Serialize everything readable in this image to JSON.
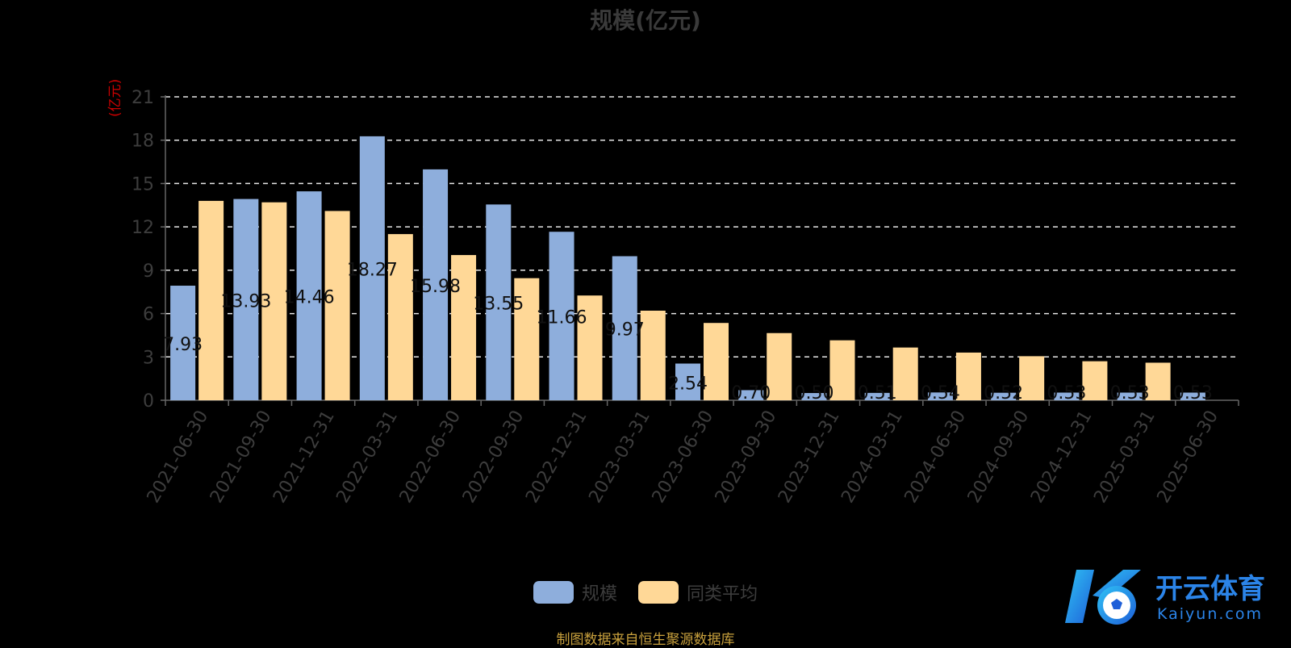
{
  "chart_data": {
    "type": "bar",
    "title": "规模(亿元)",
    "ylabel": "(亿元)",
    "xlabel": "",
    "ylim": [
      0,
      21
    ],
    "yticks": [
      0,
      3,
      6,
      9,
      12,
      15,
      18,
      21
    ],
    "grid": true,
    "legend_position": "bottom",
    "categories": [
      "2021-06-30",
      "2021-09-30",
      "2021-12-31",
      "2022-03-31",
      "2022-06-30",
      "2022-09-30",
      "2022-12-31",
      "2023-03-31",
      "2023-06-30",
      "2023-09-30",
      "2023-12-31",
      "2024-03-31",
      "2024-06-30",
      "2024-09-30",
      "2024-12-31",
      "2025-03-31",
      "2025-06-30"
    ],
    "series": [
      {
        "name": "规模",
        "color": "#8eaedc",
        "values": [
          7.93,
          13.93,
          14.46,
          18.27,
          15.98,
          13.55,
          11.66,
          9.97,
          2.54,
          0.7,
          0.5,
          0.51,
          0.54,
          0.52,
          0.53,
          0.53,
          0.53
        ],
        "labels": [
          "7.93",
          "13.93",
          "14.46",
          "18.27",
          "15.98",
          "13.55",
          "11.66",
          "9.97",
          "2.54",
          "0.70",
          "0.50",
          "0.51",
          "0.54",
          "0.52",
          "0.53",
          "0.53",
          "0.53"
        ]
      },
      {
        "name": "同类平均",
        "color": "#ffd897",
        "values": [
          13.8,
          13.7,
          13.1,
          11.5,
          10.05,
          8.45,
          7.25,
          6.2,
          5.35,
          4.65,
          4.15,
          3.65,
          3.3,
          3.05,
          2.7,
          2.6,
          null
        ]
      }
    ]
  },
  "legend": {
    "items": [
      {
        "label": "规模",
        "color": "#8eaedc"
      },
      {
        "label": "同类平均",
        "color": "#ffd897"
      }
    ]
  },
  "source_note": "制图数据来自恒生聚源数据库",
  "watermark": {
    "brand": "开云体育",
    "domain": "Kaiyun.com"
  }
}
